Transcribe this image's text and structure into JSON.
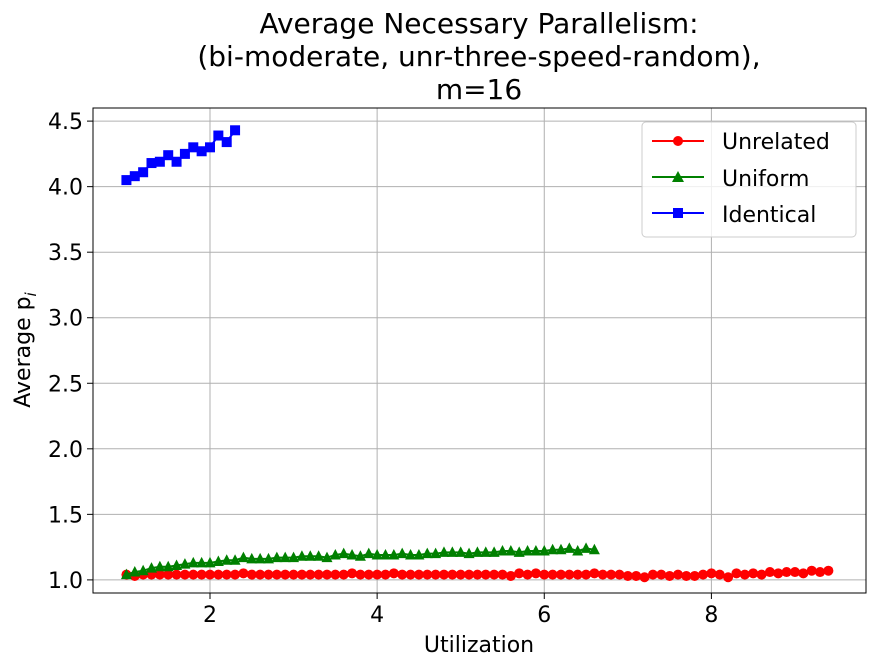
{
  "chart_data": {
    "type": "line",
    "title_lines": [
      "Average Necessary Parallelism:",
      "(bi-moderate, unr-three-speed-random),",
      "m=16"
    ],
    "xlabel": "Utilization",
    "ylabel": "Average p",
    "ylabel_sub": "i",
    "xlim": [
      0.6,
      9.85
    ],
    "ylim": [
      0.9,
      4.6
    ],
    "xticks": [
      2,
      4,
      6,
      8
    ],
    "yticks": [
      1.0,
      1.5,
      2.0,
      2.5,
      3.0,
      3.5,
      4.0,
      4.5
    ],
    "xtick_labels": [
      "2",
      "4",
      "6",
      "8"
    ],
    "ytick_labels": [
      "1.0",
      "1.5",
      "2.0",
      "2.5",
      "3.0",
      "3.5",
      "4.0",
      "4.5"
    ],
    "grid": true,
    "legend_position": "top-right",
    "series": [
      {
        "name": "Unrelated",
        "color": "#ff0000",
        "marker": "circle",
        "x": [
          1.0,
          1.1,
          1.2,
          1.3,
          1.4,
          1.5,
          1.6,
          1.7,
          1.8,
          1.9,
          2.0,
          2.1,
          2.2,
          2.3,
          2.4,
          2.5,
          2.6,
          2.7,
          2.8,
          2.9,
          3.0,
          3.1,
          3.2,
          3.3,
          3.4,
          3.5,
          3.6,
          3.7,
          3.8,
          3.9,
          4.0,
          4.1,
          4.2,
          4.3,
          4.4,
          4.5,
          4.6,
          4.7,
          4.8,
          4.9,
          5.0,
          5.1,
          5.2,
          5.3,
          5.4,
          5.5,
          5.6,
          5.7,
          5.8,
          5.9,
          6.0,
          6.1,
          6.2,
          6.3,
          6.4,
          6.5,
          6.6,
          6.7,
          6.8,
          6.9,
          7.0,
          7.1,
          7.2,
          7.3,
          7.4,
          7.5,
          7.6,
          7.7,
          7.8,
          7.9,
          8.0,
          8.1,
          8.2,
          8.3,
          8.4,
          8.5,
          8.6,
          8.7,
          8.8,
          8.9,
          9.0,
          9.1,
          9.2,
          9.3,
          9.4
        ],
        "y": [
          1.04,
          1.03,
          1.04,
          1.04,
          1.04,
          1.04,
          1.04,
          1.04,
          1.04,
          1.04,
          1.04,
          1.04,
          1.04,
          1.04,
          1.05,
          1.04,
          1.04,
          1.04,
          1.04,
          1.04,
          1.04,
          1.04,
          1.04,
          1.04,
          1.04,
          1.04,
          1.04,
          1.05,
          1.04,
          1.04,
          1.04,
          1.04,
          1.05,
          1.04,
          1.04,
          1.04,
          1.04,
          1.04,
          1.04,
          1.04,
          1.04,
          1.04,
          1.04,
          1.04,
          1.04,
          1.04,
          1.03,
          1.05,
          1.04,
          1.05,
          1.04,
          1.04,
          1.04,
          1.04,
          1.04,
          1.04,
          1.05,
          1.04,
          1.04,
          1.04,
          1.03,
          1.03,
          1.02,
          1.04,
          1.04,
          1.03,
          1.04,
          1.03,
          1.03,
          1.04,
          1.05,
          1.04,
          1.02,
          1.05,
          1.04,
          1.05,
          1.04,
          1.06,
          1.05,
          1.06,
          1.06,
          1.05,
          1.07,
          1.06,
          1.07
        ]
      },
      {
        "name": "Uniform",
        "color": "#008000",
        "marker": "triangle",
        "x": [
          1.0,
          1.1,
          1.2,
          1.3,
          1.4,
          1.5,
          1.6,
          1.7,
          1.8,
          1.9,
          2.0,
          2.1,
          2.2,
          2.3,
          2.4,
          2.5,
          2.6,
          2.7,
          2.8,
          2.9,
          3.0,
          3.1,
          3.2,
          3.3,
          3.4,
          3.5,
          3.6,
          3.7,
          3.8,
          3.9,
          4.0,
          4.1,
          4.2,
          4.3,
          4.4,
          4.5,
          4.6,
          4.7,
          4.8,
          4.9,
          5.0,
          5.1,
          5.2,
          5.3,
          5.4,
          5.5,
          5.6,
          5.7,
          5.8,
          5.9,
          6.0,
          6.1,
          6.2,
          6.3,
          6.4,
          6.5,
          6.6
        ],
        "y": [
          1.04,
          1.06,
          1.07,
          1.09,
          1.1,
          1.1,
          1.11,
          1.12,
          1.13,
          1.13,
          1.13,
          1.14,
          1.15,
          1.15,
          1.17,
          1.16,
          1.16,
          1.16,
          1.17,
          1.17,
          1.17,
          1.18,
          1.18,
          1.18,
          1.17,
          1.19,
          1.2,
          1.19,
          1.18,
          1.2,
          1.19,
          1.19,
          1.19,
          1.2,
          1.19,
          1.19,
          1.2,
          1.2,
          1.21,
          1.21,
          1.21,
          1.2,
          1.21,
          1.21,
          1.21,
          1.22,
          1.22,
          1.21,
          1.22,
          1.22,
          1.22,
          1.23,
          1.23,
          1.24,
          1.22,
          1.24,
          1.23
        ]
      },
      {
        "name": "Identical",
        "color": "#0000ff",
        "marker": "square",
        "x": [
          1.0,
          1.1,
          1.2,
          1.3,
          1.4,
          1.5,
          1.6,
          1.7,
          1.8,
          1.9,
          2.0,
          2.1,
          2.2,
          2.3
        ],
        "y": [
          4.05,
          4.08,
          4.11,
          4.18,
          4.19,
          4.24,
          4.19,
          4.25,
          4.3,
          4.27,
          4.3,
          4.39,
          4.34,
          4.43
        ]
      }
    ]
  }
}
